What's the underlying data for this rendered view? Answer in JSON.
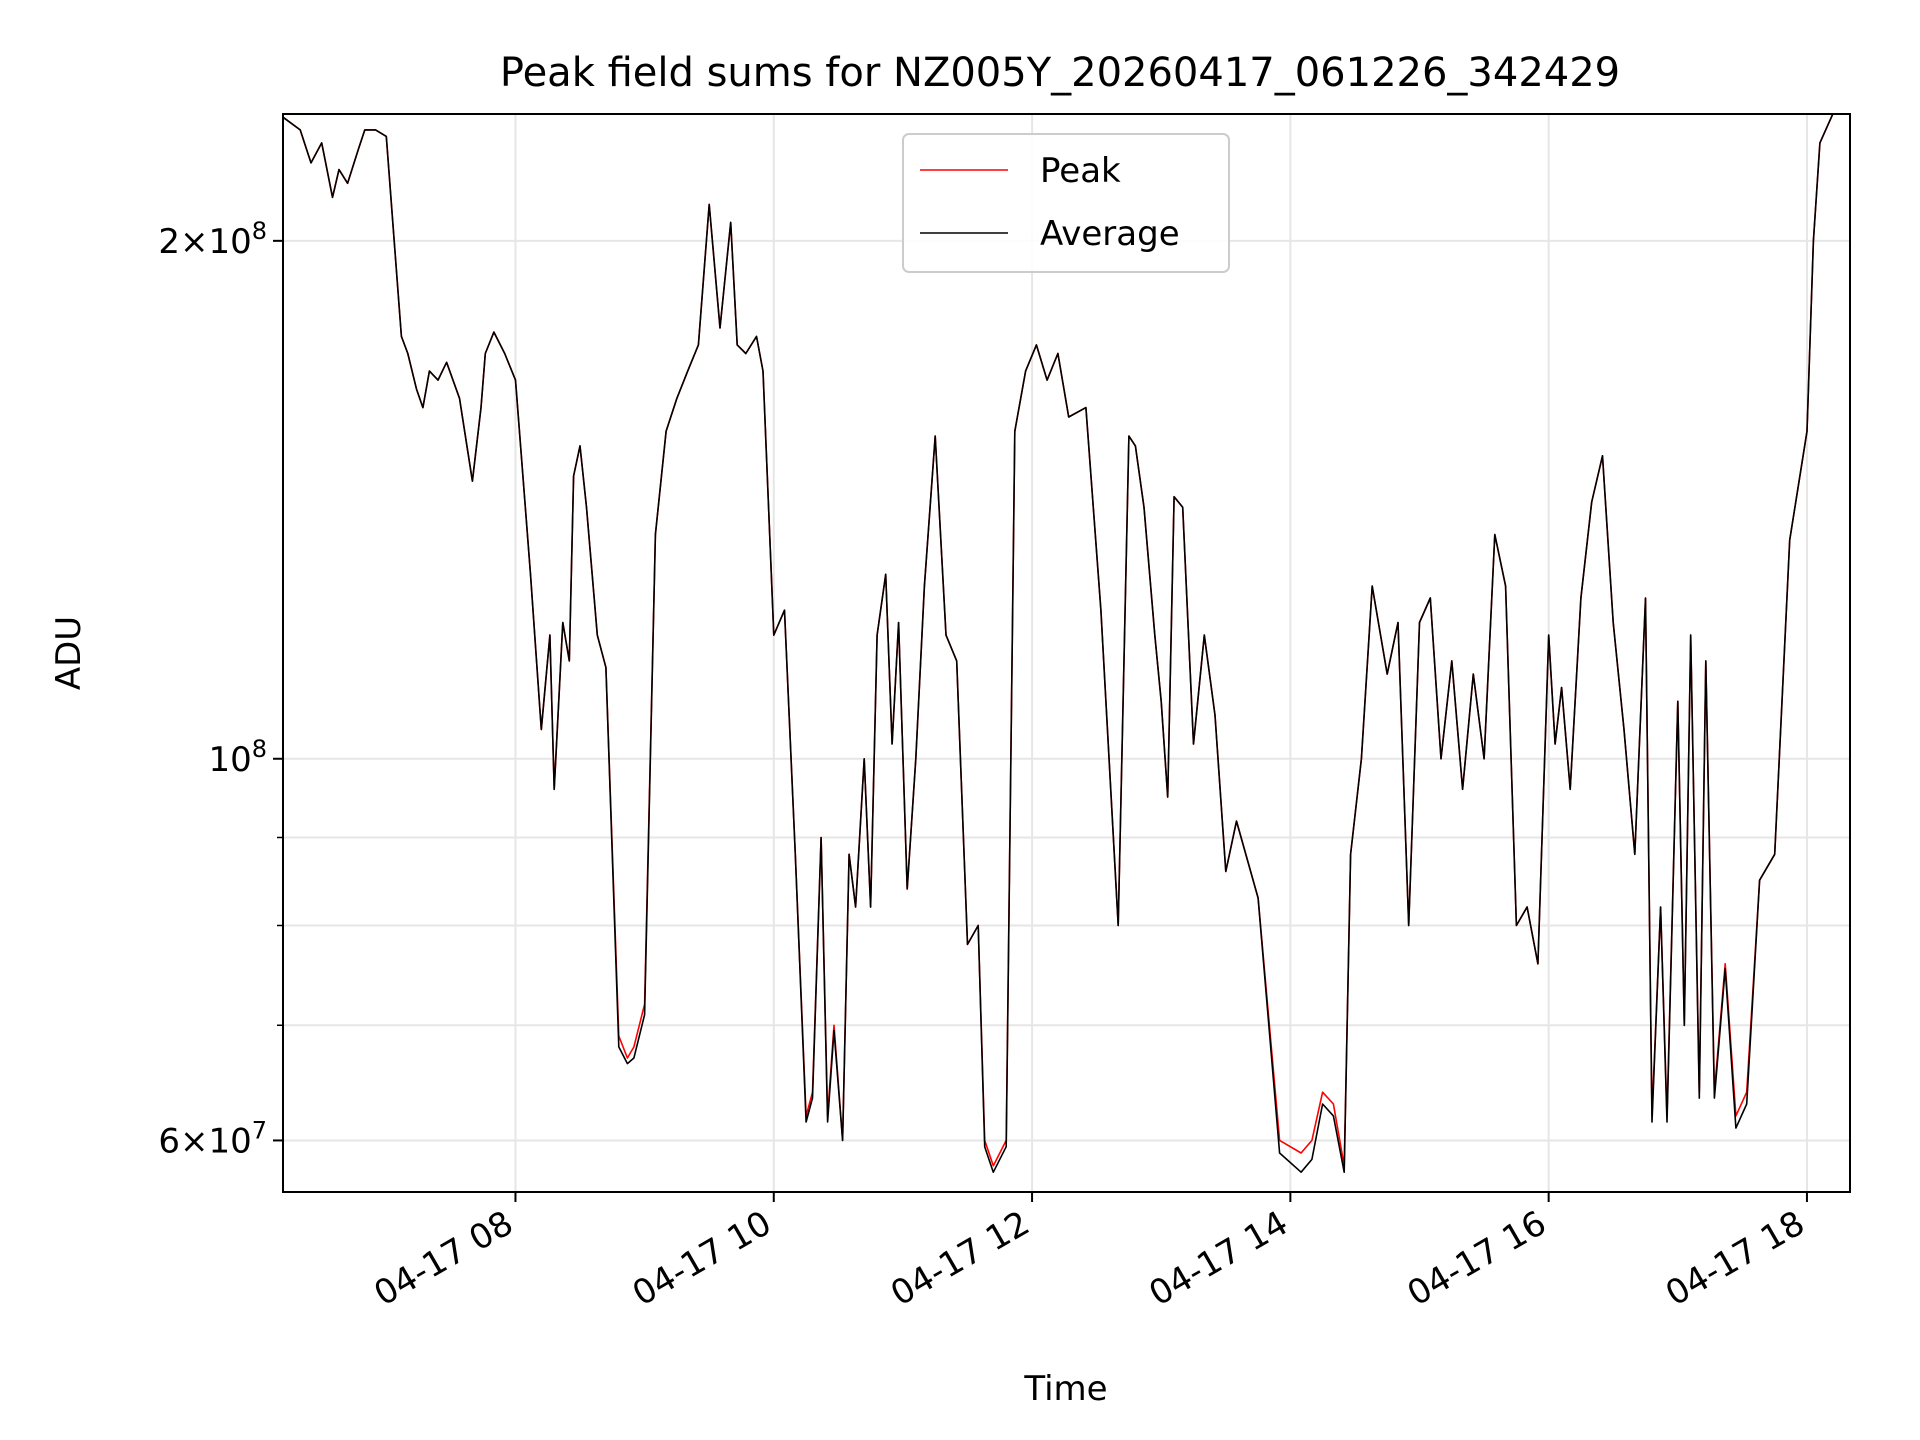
{
  "chart_data": {
    "type": "line",
    "title": "Peak field sums for NZ005Y_20260417_061226_342429",
    "xlabel": "Time",
    "ylabel": "ADU",
    "yscale": "log",
    "ylim": [
      56000000,
      237000000
    ],
    "xlim": [
      "2026-04-17 06:12",
      "2026-04-17 18:20"
    ],
    "grid": true,
    "legend": {
      "position": "top-center",
      "entries": [
        "Peak",
        "Average"
      ]
    },
    "x_ticks": [
      {
        "value": "2026-04-17 08:00",
        "label": "04-17 08"
      },
      {
        "value": "2026-04-17 10:00",
        "label": "04-17 10"
      },
      {
        "value": "2026-04-17 12:00",
        "label": "04-17 12"
      },
      {
        "value": "2026-04-17 14:00",
        "label": "04-17 14"
      },
      {
        "value": "2026-04-17 16:00",
        "label": "04-17 16"
      },
      {
        "value": "2026-04-17 18:00",
        "label": "04-17 18"
      }
    ],
    "y_ticks_major": [
      {
        "value": 60000000,
        "base": "6",
        "exponent": "7"
      },
      {
        "value": 100000000,
        "base": "",
        "exponent": "8"
      },
      {
        "value": 200000000,
        "base": "2",
        "exponent": "8"
      }
    ],
    "y_ticks_minor": [
      70000000,
      80000000,
      90000000
    ],
    "x": [
      "2026-04-17 06:12",
      "2026-04-17 06:20",
      "2026-04-17 06:25",
      "2026-04-17 06:30",
      "2026-04-17 06:35",
      "2026-04-17 06:38",
      "2026-04-17 06:42",
      "2026-04-17 06:47",
      "2026-04-17 06:50",
      "2026-04-17 06:55",
      "2026-04-17 07:00",
      "2026-04-17 07:07",
      "2026-04-17 07:10",
      "2026-04-17 07:14",
      "2026-04-17 07:17",
      "2026-04-17 07:20",
      "2026-04-17 07:24",
      "2026-04-17 07:28",
      "2026-04-17 07:34",
      "2026-04-17 07:40",
      "2026-04-17 07:44",
      "2026-04-17 07:46",
      "2026-04-17 07:50",
      "2026-04-17 07:55",
      "2026-04-17 08:00",
      "2026-04-17 08:07",
      "2026-04-17 08:12",
      "2026-04-17 08:16",
      "2026-04-17 08:18",
      "2026-04-17 08:22",
      "2026-04-17 08:25",
      "2026-04-17 08:27",
      "2026-04-17 08:30",
      "2026-04-17 08:33",
      "2026-04-17 08:38",
      "2026-04-17 08:42",
      "2026-04-17 08:48",
      "2026-04-17 08:52",
      "2026-04-17 08:55",
      "2026-04-17 09:00",
      "2026-04-17 09:05",
      "2026-04-17 09:10",
      "2026-04-17 09:15",
      "2026-04-17 09:20",
      "2026-04-17 09:25",
      "2026-04-17 09:30",
      "2026-04-17 09:35",
      "2026-04-17 09:40",
      "2026-04-17 09:43",
      "2026-04-17 09:47",
      "2026-04-17 09:52",
      "2026-04-17 09:55",
      "2026-04-17 10:00",
      "2026-04-17 10:05",
      "2026-04-17 10:10",
      "2026-04-17 10:15",
      "2026-04-17 10:18",
      "2026-04-17 10:22",
      "2026-04-17 10:25",
      "2026-04-17 10:28",
      "2026-04-17 10:32",
      "2026-04-17 10:35",
      "2026-04-17 10:38",
      "2026-04-17 10:42",
      "2026-04-17 10:45",
      "2026-04-17 10:48",
      "2026-04-17 10:52",
      "2026-04-17 10:55",
      "2026-04-17 10:58",
      "2026-04-17 11:02",
      "2026-04-17 11:06",
      "2026-04-17 11:10",
      "2026-04-17 11:15",
      "2026-04-17 11:20",
      "2026-04-17 11:25",
      "2026-04-17 11:30",
      "2026-04-17 11:35",
      "2026-04-17 11:38",
      "2026-04-17 11:42",
      "2026-04-17 11:48",
      "2026-04-17 11:52",
      "2026-04-17 11:57",
      "2026-04-17 12:02",
      "2026-04-17 12:07",
      "2026-04-17 12:12",
      "2026-04-17 12:17",
      "2026-04-17 12:25",
      "2026-04-17 12:32",
      "2026-04-17 12:40",
      "2026-04-17 12:45",
      "2026-04-17 12:48",
      "2026-04-17 12:52",
      "2026-04-17 12:57",
      "2026-04-17 13:00",
      "2026-04-17 13:03",
      "2026-04-17 13:06",
      "2026-04-17 13:10",
      "2026-04-17 13:15",
      "2026-04-17 13:20",
      "2026-04-17 13:25",
      "2026-04-17 13:30",
      "2026-04-17 13:35",
      "2026-04-17 13:45",
      "2026-04-17 13:55",
      "2026-04-17 14:05",
      "2026-04-17 14:10",
      "2026-04-17 14:15",
      "2026-04-17 14:20",
      "2026-04-17 14:25",
      "2026-04-17 14:28",
      "2026-04-17 14:33",
      "2026-04-17 14:38",
      "2026-04-17 14:45",
      "2026-04-17 14:50",
      "2026-04-17 14:55",
      "2026-04-17 15:00",
      "2026-04-17 15:05",
      "2026-04-17 15:10",
      "2026-04-17 15:15",
      "2026-04-17 15:20",
      "2026-04-17 15:25",
      "2026-04-17 15:30",
      "2026-04-17 15:35",
      "2026-04-17 15:40",
      "2026-04-17 15:45",
      "2026-04-17 15:50",
      "2026-04-17 15:55",
      "2026-04-17 16:00",
      "2026-04-17 16:03",
      "2026-04-17 16:06",
      "2026-04-17 16:10",
      "2026-04-17 16:15",
      "2026-04-17 16:20",
      "2026-04-17 16:25",
      "2026-04-17 16:30",
      "2026-04-17 16:35",
      "2026-04-17 16:40",
      "2026-04-17 16:45",
      "2026-04-17 16:48",
      "2026-04-17 16:52",
      "2026-04-17 16:55",
      "2026-04-17 17:00",
      "2026-04-17 17:03",
      "2026-04-17 17:06",
      "2026-04-17 17:10",
      "2026-04-17 17:13",
      "2026-04-17 17:17",
      "2026-04-17 17:22",
      "2026-04-17 17:27",
      "2026-04-17 17:32",
      "2026-04-17 17:38",
      "2026-04-17 17:45",
      "2026-04-17 17:52",
      "2026-04-17 18:00",
      "2026-04-17 18:03",
      "2026-04-17 18:06",
      "2026-04-17 18:12",
      "2026-04-17 18:18"
    ],
    "series": [
      {
        "name": "Peak",
        "color": "#ff0000",
        "values": [
          236000000,
          232000000,
          222000000,
          228000000,
          212000000,
          220000000,
          216000000,
          226000000,
          232000000,
          232000000,
          230000000,
          176000000,
          172000000,
          164000000,
          160000000,
          168000000,
          166000000,
          170000000,
          162000000,
          145000000,
          160000000,
          172000000,
          177000000,
          172000000,
          166000000,
          128000000,
          104000000,
          118000000,
          96000000,
          120000000,
          114000000,
          146000000,
          152000000,
          140000000,
          118000000,
          113000000,
          69000000,
          67000000,
          68000000,
          72000000,
          135000000,
          155000000,
          162000000,
          168000000,
          174000000,
          210000000,
          178000000,
          205000000,
          174000000,
          172000000,
          176000000,
          168000000,
          118000000,
          122000000,
          88000000,
          62000000,
          64000000,
          90000000,
          62000000,
          70000000,
          60000000,
          88000000,
          82000000,
          100000000,
          82000000,
          118000000,
          128000000,
          102000000,
          120000000,
          84000000,
          100000000,
          126000000,
          154000000,
          118000000,
          114000000,
          78000000,
          80000000,
          60000000,
          58000000,
          60000000,
          155000000,
          168000000,
          174000000,
          166000000,
          172000000,
          158000000,
          160000000,
          122000000,
          80000000,
          154000000,
          152000000,
          140000000,
          118000000,
          108000000,
          95000000,
          142000000,
          140000000,
          102000000,
          118000000,
          106000000,
          86000000,
          92000000,
          83000000,
          60000000,
          59000000,
          60000000,
          64000000,
          63000000,
          58000000,
          88000000,
          100000000,
          126000000,
          112000000,
          120000000,
          80000000,
          120000000,
          124000000,
          100000000,
          114000000,
          96000000,
          112000000,
          100000000,
          135000000,
          126000000,
          80000000,
          82000000,
          76000000,
          118000000,
          102000000,
          110000000,
          96000000,
          124000000,
          141000000,
          150000000,
          120000000,
          104000000,
          88000000,
          124000000,
          62000000,
          82000000,
          62000000,
          108000000,
          70000000,
          118000000,
          64000000,
          114000000,
          64000000,
          76000000,
          62000000,
          64000000,
          85000000,
          88000000,
          134000000,
          155000000,
          200000000,
          228000000,
          237000000,
          237000000
        ]
      },
      {
        "name": "Average",
        "color": "#000000",
        "values": [
          236000000,
          232000000,
          222000000,
          228000000,
          212000000,
          220000000,
          216000000,
          226000000,
          232000000,
          232000000,
          230000000,
          176000000,
          172000000,
          164000000,
          160000000,
          168000000,
          166000000,
          170000000,
          162000000,
          145000000,
          160000000,
          172000000,
          177000000,
          172000000,
          166000000,
          128000000,
          104000000,
          118000000,
          96000000,
          120000000,
          114000000,
          146000000,
          152000000,
          140000000,
          118000000,
          113000000,
          68000000,
          66500000,
          67000000,
          71000000,
          135000000,
          155000000,
          162000000,
          168000000,
          174000000,
          210000000,
          178000000,
          205000000,
          174000000,
          172000000,
          176000000,
          168000000,
          118000000,
          122000000,
          88000000,
          61500000,
          63500000,
          90000000,
          61500000,
          69500000,
          60000000,
          88000000,
          82000000,
          100000000,
          82000000,
          118000000,
          128000000,
          102000000,
          120000000,
          84000000,
          100000000,
          126000000,
          154000000,
          118000000,
          114000000,
          78000000,
          80000000,
          59500000,
          57500000,
          59500000,
          155000000,
          168000000,
          174000000,
          166000000,
          172000000,
          158000000,
          160000000,
          122000000,
          80000000,
          154000000,
          152000000,
          140000000,
          118000000,
          108000000,
          95000000,
          142000000,
          140000000,
          102000000,
          118000000,
          106000000,
          86000000,
          92000000,
          83000000,
          59000000,
          57500000,
          58500000,
          63000000,
          62000000,
          57500000,
          88000000,
          100000000,
          126000000,
          112000000,
          120000000,
          80000000,
          120000000,
          124000000,
          100000000,
          114000000,
          96000000,
          112000000,
          100000000,
          135000000,
          126000000,
          80000000,
          82000000,
          76000000,
          118000000,
          102000000,
          110000000,
          96000000,
          124000000,
          141000000,
          150000000,
          120000000,
          104000000,
          88000000,
          124000000,
          61500000,
          82000000,
          61500000,
          108000000,
          70000000,
          118000000,
          63500000,
          114000000,
          63500000,
          75500000,
          61000000,
          63000000,
          85000000,
          88000000,
          134000000,
          155000000,
          200000000,
          228000000,
          237000000,
          237000000
        ]
      }
    ]
  }
}
